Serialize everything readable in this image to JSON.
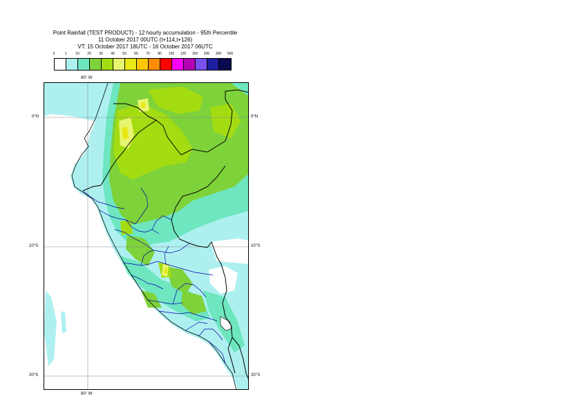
{
  "title": {
    "line1": "Point Rainfall (TEST PRODUCT) - 12 hourly accumulation - 95th Percentile",
    "line2": "11 October 2017 00UTC (t+114,t+126)",
    "line3": "VT: 15 October 2017 18UTC - 16 October 2017 06UTC"
  },
  "legend": {
    "labels": [
      "0",
      "1",
      "10",
      "20",
      "30",
      "40",
      "50",
      "60",
      "70",
      "80",
      "100",
      "125",
      "150",
      "200",
      "300",
      "500"
    ],
    "colors": [
      "#ffffff",
      "#aef0f0",
      "#6ee6c0",
      "#7ed23a",
      "#a4dc12",
      "#e8f570",
      "#e8e814",
      "#ffc800",
      "#ff8c00",
      "#ff0000",
      "#ff00ff",
      "#b400b4",
      "#7850f0",
      "#1e1ea0",
      "#0a0a50"
    ]
  },
  "axes": {
    "lon_top": "80° W",
    "lon_bottom": "80° W",
    "lat_left": [
      "0°N",
      "10°S",
      "20°S"
    ],
    "lat_right": [
      "0°N",
      "10°S",
      "20°S"
    ]
  },
  "map": {
    "region": "Ecuador and Peru",
    "field": "12 hourly accumulation - 95th Percentile",
    "colors": {
      "ocean": "#ffffff",
      "land_1_10": "#aef0f0",
      "band_10_20": "#6ee6c0",
      "band_20_30": "#7ed23a",
      "band_30_40": "#a4dc12",
      "band_40_50": "#e8f570",
      "band_50_60": "#e8e814",
      "border": "#000000",
      "admin_border": "#0000aa",
      "gridline": "#888888"
    }
  }
}
